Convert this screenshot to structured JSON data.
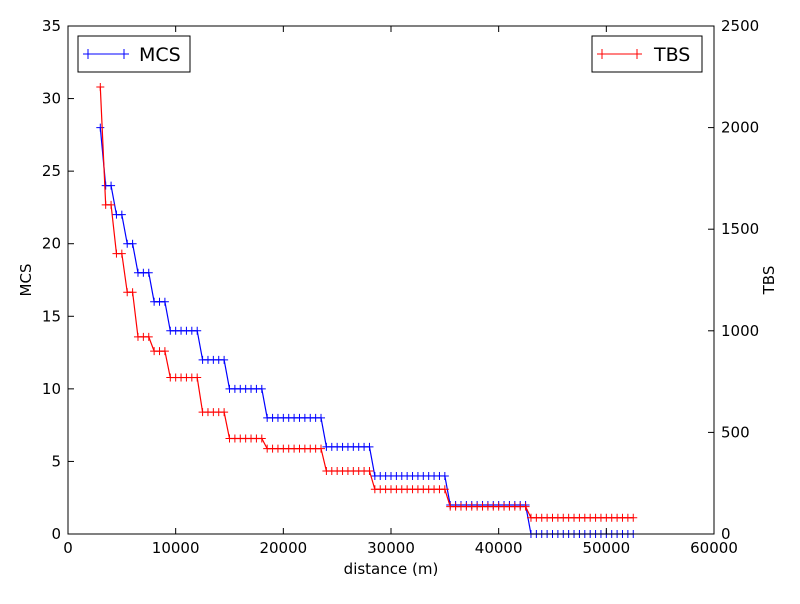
{
  "chart_data": {
    "type": "line",
    "xlabel": "distance (m)",
    "ylabel_left": "MCS",
    "ylabel_right": "TBS",
    "xlim": [
      0,
      60000
    ],
    "ylim_left": [
      0,
      35
    ],
    "ylim_right": [
      0,
      2500
    ],
    "x_ticks": [
      "0",
      "10000",
      "20000",
      "30000",
      "40000",
      "50000",
      "60000"
    ],
    "y_left_ticks": [
      "0",
      "5",
      "10",
      "15",
      "20",
      "25",
      "30",
      "35"
    ],
    "y_right_ticks": [
      "0",
      "500",
      "1000",
      "1500",
      "2000",
      "2500"
    ],
    "grid": false,
    "colors": {
      "MCS": "#0000ff",
      "TBS": "#ff0000"
    },
    "legend": [
      {
        "label": "MCS",
        "placement": "top-left"
      },
      {
        "label": "TBS",
        "placement": "top-right"
      }
    ],
    "series": [
      {
        "name": "MCS",
        "axis": "left",
        "x": [
          3000,
          3500,
          4000,
          4500,
          5000,
          5500,
          6000,
          6500,
          7000,
          7500,
          8000,
          8500,
          9000,
          9500,
          10000,
          10500,
          11000,
          11500,
          12000,
          12500,
          13000,
          13500,
          14000,
          14500,
          15000,
          15500,
          16000,
          16500,
          17000,
          17500,
          18000,
          18500,
          19000,
          19500,
          20000,
          20500,
          21000,
          21500,
          22000,
          22500,
          23000,
          23500,
          24000,
          24500,
          25000,
          25500,
          26000,
          26500,
          27000,
          27500,
          28000,
          28500,
          29000,
          29500,
          30000,
          30500,
          31000,
          31500,
          32000,
          32500,
          33000,
          33500,
          34000,
          34500,
          35000,
          35500,
          36000,
          36500,
          37000,
          37500,
          38000,
          38500,
          39000,
          39500,
          40000,
          40500,
          41000,
          41500,
          42000,
          42500,
          43000,
          43500,
          44000,
          44500,
          45000,
          45500,
          46000,
          46500,
          47000,
          47500,
          48000,
          48500,
          49000,
          49500,
          50000,
          50500,
          51000,
          51500,
          52000,
          52500
        ],
        "y": [
          28,
          24,
          24,
          22,
          22,
          20,
          20,
          18,
          18,
          18,
          16,
          16,
          16,
          14,
          14,
          14,
          14,
          14,
          14,
          12,
          12,
          12,
          12,
          12,
          10,
          10,
          10,
          10,
          10,
          10,
          10,
          8,
          8,
          8,
          8,
          8,
          8,
          8,
          8,
          8,
          8,
          8,
          6,
          6,
          6,
          6,
          6,
          6,
          6,
          6,
          6,
          4,
          4,
          4,
          4,
          4,
          4,
          4,
          4,
          4,
          4,
          4,
          4,
          4,
          4,
          2,
          2,
          2,
          2,
          2,
          2,
          2,
          2,
          2,
          2,
          2,
          2,
          2,
          2,
          2,
          0,
          0,
          0,
          0,
          0,
          0,
          0,
          0,
          0,
          0,
          0,
          0,
          0,
          0,
          0,
          0,
          0,
          0,
          0,
          0
        ]
      },
      {
        "name": "TBS",
        "axis": "right",
        "x": [
          3000,
          3500,
          4000,
          4500,
          5000,
          5500,
          6000,
          6500,
          7000,
          7500,
          8000,
          8500,
          9000,
          9500,
          10000,
          10500,
          11000,
          11500,
          12000,
          12500,
          13000,
          13500,
          14000,
          14500,
          15000,
          15500,
          16000,
          16500,
          17000,
          17500,
          18000,
          18500,
          19000,
          19500,
          20000,
          20500,
          21000,
          21500,
          22000,
          22500,
          23000,
          23500,
          24000,
          24500,
          25000,
          25500,
          26000,
          26500,
          27000,
          27500,
          28000,
          28500,
          29000,
          29500,
          30000,
          30500,
          31000,
          31500,
          32000,
          32500,
          33000,
          33500,
          34000,
          34500,
          35000,
          35500,
          36000,
          36500,
          37000,
          37500,
          38000,
          38500,
          39000,
          39500,
          40000,
          40500,
          41000,
          41500,
          42000,
          42500,
          43000,
          43500,
          44000,
          44500,
          45000,
          45500,
          46000,
          46500,
          47000,
          47500,
          48000,
          48500,
          49000,
          49500,
          50000,
          50500,
          51000,
          51500,
          52000,
          52500
        ],
        "y": [
          2200,
          1620,
          1620,
          1380,
          1380,
          1190,
          1190,
          970,
          970,
          970,
          900,
          900,
          900,
          770,
          770,
          770,
          770,
          770,
          770,
          600,
          600,
          600,
          600,
          600,
          470,
          470,
          470,
          470,
          470,
          470,
          470,
          420,
          420,
          420,
          420,
          420,
          420,
          420,
          420,
          420,
          420,
          420,
          310,
          310,
          310,
          310,
          310,
          310,
          310,
          310,
          310,
          220,
          220,
          220,
          220,
          220,
          220,
          220,
          220,
          220,
          220,
          220,
          220,
          220,
          220,
          135,
          135,
          135,
          135,
          135,
          135,
          135,
          135,
          135,
          135,
          135,
          135,
          135,
          135,
          135,
          80,
          80,
          80,
          80,
          80,
          80,
          80,
          80,
          80,
          80,
          80,
          80,
          80,
          80,
          80,
          80,
          80,
          80,
          80,
          80
        ]
      }
    ]
  }
}
